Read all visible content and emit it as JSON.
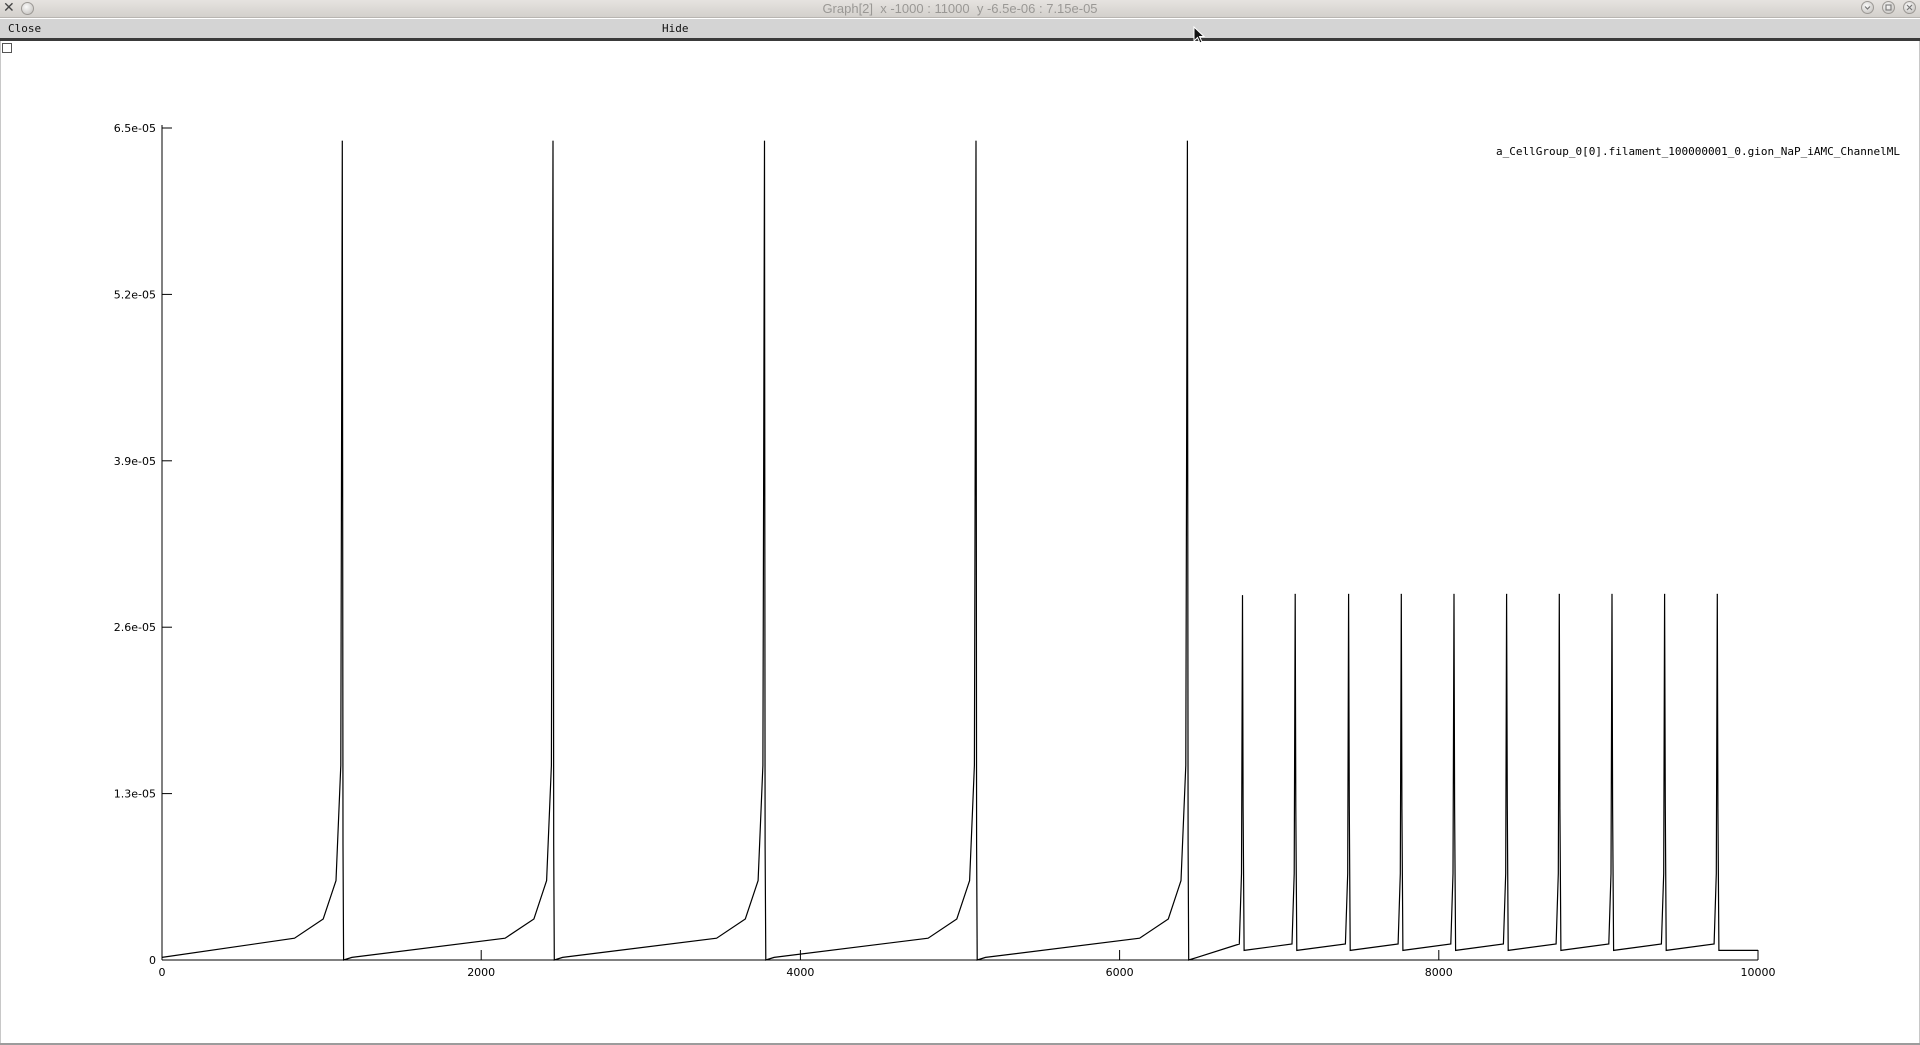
{
  "window": {
    "title": "Graph[2]  x -1000 : 11000  y -6.5e-06 : 7.15e-05",
    "close_glyph": "✕",
    "icons": [
      "x-logo-icon",
      "menu-circle-icon",
      "minimize-icon",
      "maximize-icon",
      "close-icon"
    ]
  },
  "menubar": {
    "close_label": "Close",
    "hide_label": "Hide"
  },
  "chart_data": {
    "type": "line",
    "title": "",
    "xlabel": "",
    "ylabel": "",
    "xlim": [
      0,
      10000
    ],
    "ylim": [
      0,
      6.5e-05
    ],
    "x_ticks": [
      0,
      2000,
      4000,
      6000,
      8000,
      10000
    ],
    "x_tick_labels": [
      "0",
      "2000",
      "4000",
      "6000",
      "8000",
      "10000"
    ],
    "y_ticks": [
      0,
      1.3e-05,
      2.6e-05,
      3.9e-05,
      5.2e-05,
      6.5e-05
    ],
    "y_tick_labels": [
      "0",
      "1.3e-05",
      "2.6e-05",
      "3.9e-05",
      "5.2e-05",
      "6.5e-05"
    ],
    "grid": false,
    "legend_position": "top-right",
    "series": [
      {
        "name": "a_CellGroup_0[0].filament_100000001_0.gion_NaP_iAMC_ChannelML",
        "color": "#000000",
        "baseline": 2e-07,
        "plateau_after_6500": 7.5e-07,
        "spikes": [
          {
            "x": 1130,
            "peak": 6.4e-05
          },
          {
            "x": 2450,
            "peak": 6.4e-05
          },
          {
            "x": 3775,
            "peak": 6.4e-05
          },
          {
            "x": 5100,
            "peak": 6.4e-05
          },
          {
            "x": 6425,
            "peak": 6.4e-05
          },
          {
            "x": 6770,
            "peak": 2.85e-05
          },
          {
            "x": 7100,
            "peak": 2.86e-05
          },
          {
            "x": 7435,
            "peak": 2.86e-05
          },
          {
            "x": 7765,
            "peak": 2.86e-05
          },
          {
            "x": 8095,
            "peak": 2.86e-05
          },
          {
            "x": 8425,
            "peak": 2.86e-05
          },
          {
            "x": 8755,
            "peak": 2.86e-05
          },
          {
            "x": 9085,
            "peak": 2.86e-05
          },
          {
            "x": 9415,
            "peak": 2.86e-05
          },
          {
            "x": 9745,
            "peak": 2.86e-05
          }
        ]
      }
    ]
  }
}
